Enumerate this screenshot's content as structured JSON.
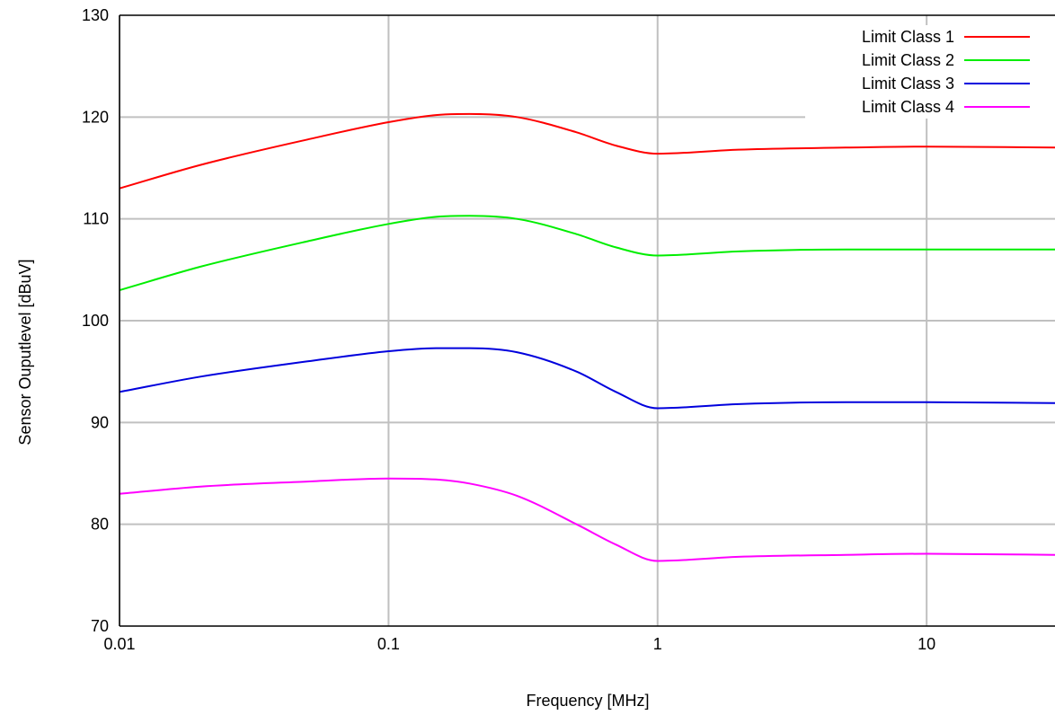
{
  "chart_data": {
    "type": "line",
    "xlabel": "Frequency [MHz]",
    "ylabel": "Sensor Ouputlevel [dBuV]",
    "xscale": "log",
    "xlim": [
      0.01,
      30
    ],
    "ylim": [
      70,
      130
    ],
    "x_ticks": [
      {
        "value": 0.01,
        "label": "0.01"
      },
      {
        "value": 0.1,
        "label": "0.1"
      },
      {
        "value": 1,
        "label": "1"
      },
      {
        "value": 10,
        "label": "10"
      }
    ],
    "y_ticks": [
      {
        "value": 70,
        "label": "70"
      },
      {
        "value": 80,
        "label": "80"
      },
      {
        "value": 90,
        "label": "90"
      },
      {
        "value": 100,
        "label": "100"
      },
      {
        "value": 110,
        "label": "110"
      },
      {
        "value": 120,
        "label": "120"
      },
      {
        "value": 130,
        "label": "130"
      }
    ],
    "grid": true,
    "legend_position": "top-right",
    "series": [
      {
        "name": "Limit Class 1",
        "color": "#ff0000",
        "x": [
          0.01,
          0.02,
          0.05,
          0.1,
          0.15,
          0.2,
          0.3,
          0.5,
          0.7,
          1,
          2,
          5,
          10,
          30
        ],
        "y": [
          113,
          115.3,
          117.8,
          119.5,
          120.2,
          120.3,
          120.0,
          118.5,
          117.2,
          116.4,
          116.8,
          117.0,
          117.1,
          117.0
        ]
      },
      {
        "name": "Limit Class 2",
        "color": "#00ee00",
        "x": [
          0.01,
          0.02,
          0.05,
          0.1,
          0.15,
          0.2,
          0.3,
          0.5,
          0.7,
          1,
          2,
          5,
          10,
          30
        ],
        "y": [
          103,
          105.3,
          107.8,
          109.5,
          110.2,
          110.3,
          110.0,
          108.5,
          107.2,
          106.4,
          106.8,
          107.0,
          107.0,
          107.0
        ]
      },
      {
        "name": "Limit Class 3",
        "color": "#0000dd",
        "x": [
          0.01,
          0.02,
          0.05,
          0.1,
          0.15,
          0.2,
          0.3,
          0.5,
          0.7,
          1,
          2,
          5,
          10,
          30
        ],
        "y": [
          93,
          94.5,
          96.0,
          97.0,
          97.3,
          97.3,
          96.9,
          95.0,
          93.0,
          91.4,
          91.8,
          92.0,
          92.0,
          91.9
        ]
      },
      {
        "name": "Limit Class 4",
        "color": "#ff00ff",
        "x": [
          0.01,
          0.02,
          0.05,
          0.1,
          0.15,
          0.2,
          0.3,
          0.5,
          0.7,
          1,
          2,
          5,
          10,
          30
        ],
        "y": [
          83,
          83.7,
          84.2,
          84.5,
          84.4,
          84.0,
          82.8,
          80.0,
          78.0,
          76.4,
          76.8,
          77.0,
          77.1,
          77.0
        ]
      }
    ]
  }
}
